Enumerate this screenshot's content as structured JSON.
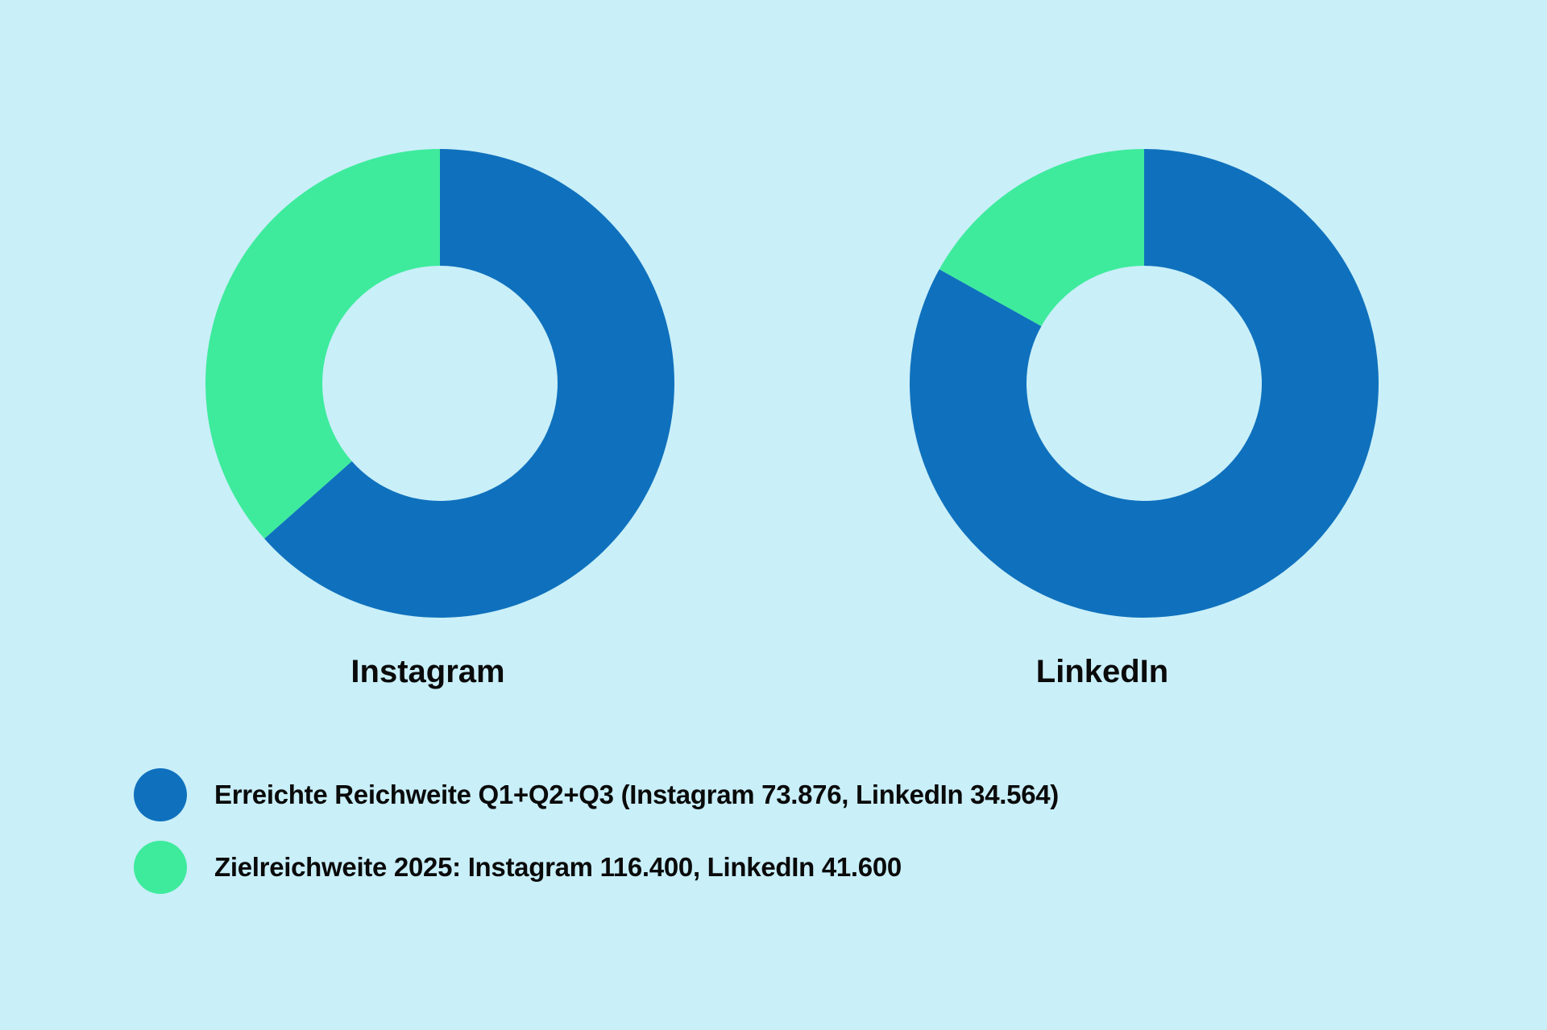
{
  "chart_data": {
    "type": "pie",
    "variant": "donut",
    "charts": [
      {
        "title": "Instagram",
        "slices": [
          {
            "series": "reached",
            "value": 73876
          },
          {
            "series": "remaining_to_target",
            "value": 42524
          }
        ],
        "target": 116400
      },
      {
        "title": "LinkedIn",
        "slices": [
          {
            "series": "reached",
            "value": 34564
          },
          {
            "series": "remaining_to_target",
            "value": 7036
          }
        ],
        "target": 41600
      }
    ],
    "legend": [
      {
        "label": "Erreichte Reichweite Q1+Q2+Q3 (Instagram 73.876, LinkedIn 34.564)",
        "color": "#0f71bd"
      },
      {
        "label": "Zielreichweite 2025: Instagram 116.400, LinkedIn 41.600",
        "color": "#3eeb9c"
      }
    ],
    "legend_placement": "bottom-left"
  }
}
